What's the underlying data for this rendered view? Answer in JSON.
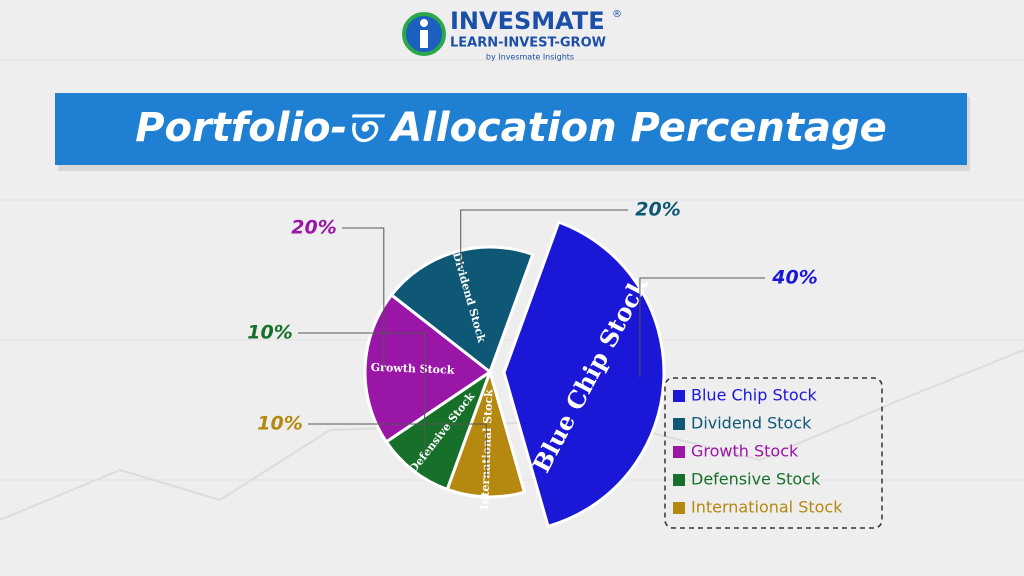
{
  "brand": {
    "name": "INVESMATE",
    "mark": "®",
    "tagline": "LEARN-INVEST-GROW",
    "byline": "by Invesmate Insights"
  },
  "chart_data": {
    "type": "pie",
    "title": "Portfolio-ত Allocation Percentage",
    "categories": [
      "Blue Chip Stock",
      "Dividend Stock",
      "Growth Stock",
      "Defensive Stock",
      "International Stock"
    ],
    "values": [
      40,
      20,
      20,
      10,
      10
    ],
    "value_labels": [
      "40%",
      "20%",
      "20%",
      "10%",
      "10%"
    ],
    "colors": [
      "#1b17d6",
      "#0e5876",
      "#9a16a6",
      "#17702a",
      "#b5880f"
    ],
    "legend": "lower-right"
  }
}
